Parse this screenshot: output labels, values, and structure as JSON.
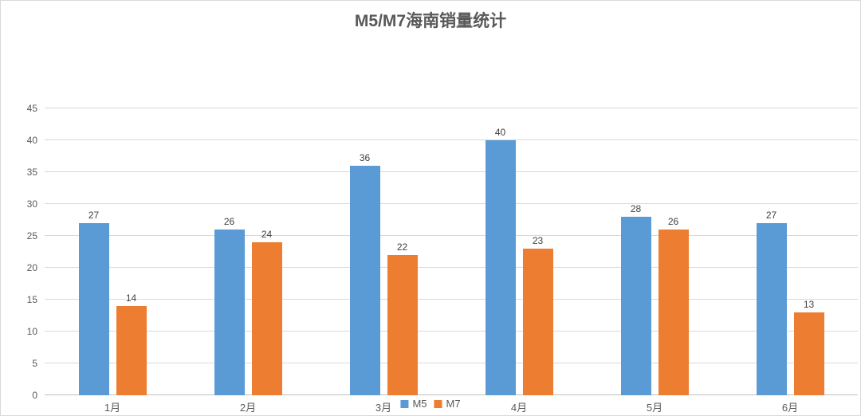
{
  "chart_data": {
    "type": "bar",
    "title": "M5/M7海南销量统计",
    "categories": [
      "1月",
      "2月",
      "3月",
      "4月",
      "5月",
      "6月"
    ],
    "series": [
      {
        "name": "M5",
        "color": "#5B9BD5",
        "values": [
          27,
          26,
          36,
          40,
          28,
          27
        ]
      },
      {
        "name": "M7",
        "color": "#ED7D31",
        "values": [
          14,
          24,
          22,
          23,
          26,
          13
        ]
      }
    ],
    "y_ticks": [
      0,
      5,
      10,
      15,
      20,
      25,
      30,
      35,
      40,
      45
    ],
    "ylim": [
      0,
      45
    ],
    "xlabel": "",
    "ylabel": "",
    "grid": true,
    "data_labels": true,
    "legend_position": "bottom-center"
  },
  "style": {
    "background": "#FFFFFF",
    "border_color": "#D9D9D9",
    "gridline_color": "#D9D9D9",
    "axis_line_color": "#BFBFBF",
    "title_color": "#595959",
    "tick_label_color": "#595959",
    "data_label_color": "#404040"
  }
}
